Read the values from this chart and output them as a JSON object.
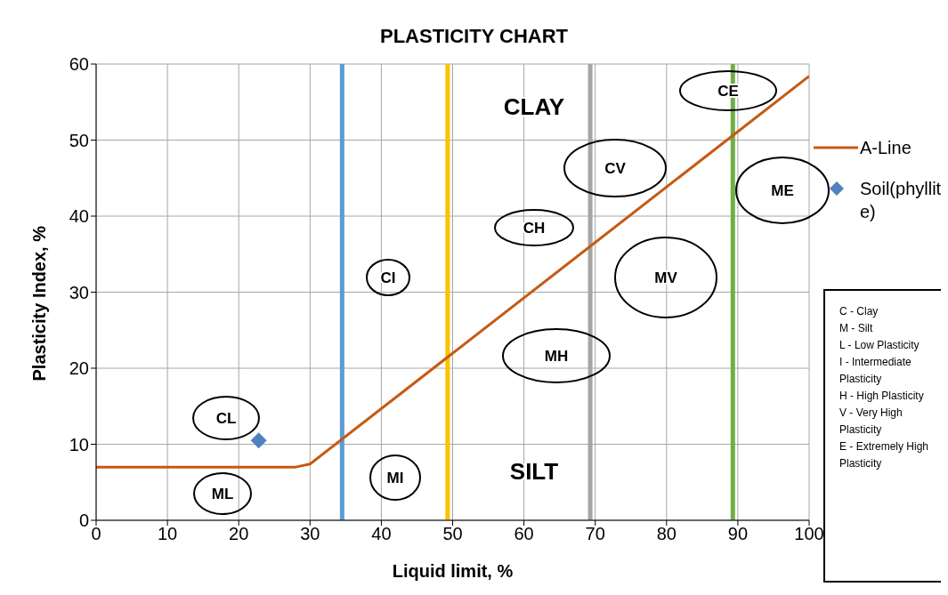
{
  "chart_data": {
    "type": "scatter",
    "title": "PLASTICITY CHART",
    "xlabel": "Liquid limit, %",
    "ylabel": "Plasticity Index, %",
    "xlim": [
      0,
      100
    ],
    "xticks": [
      0,
      10,
      20,
      30,
      40,
      50,
      60,
      70,
      80,
      90,
      100
    ],
    "ylim": [
      0,
      60
    ],
    "yticks": [
      0,
      10,
      20,
      30,
      40,
      50,
      60
    ],
    "grid": true,
    "legend": "right",
    "series": [
      {
        "name": "A-Line",
        "type": "line",
        "color": "#c55a11",
        "marker": "none",
        "line_style": "solid",
        "x": [
          0,
          28,
          30,
          100
        ],
        "values": [
          7,
          7,
          7.4,
          58.4
        ]
      },
      {
        "name": "Soil(phyllite)",
        "color": "#4f81bd",
        "marker": "diamond",
        "x": [
          22.8
        ],
        "values": [
          10.5
        ]
      }
    ],
    "ref_lines": [
      {
        "axis": "x",
        "value": 34.5,
        "color": "#5b9bd5"
      },
      {
        "axis": "x",
        "value": 49.3,
        "color": "#ffc000"
      },
      {
        "axis": "x",
        "value": 69.3,
        "color": "#a5a5a5"
      },
      {
        "axis": "x",
        "value": 89.3,
        "color": "#70ad47"
      }
    ],
    "annotations": [
      "CL",
      "ML",
      "CI",
      "MI",
      "CH",
      "MH",
      "CV",
      "MV",
      "CE",
      "ME",
      "CLAY",
      "SILT",
      "C - Clay",
      "M - Silt",
      "L  - Low Plasticity",
      "I  - Intermediate Plasticity",
      "H - High Plasticity",
      "V - Very High Plasticity",
      "E - Extremely High Plasticity"
    ]
  }
}
